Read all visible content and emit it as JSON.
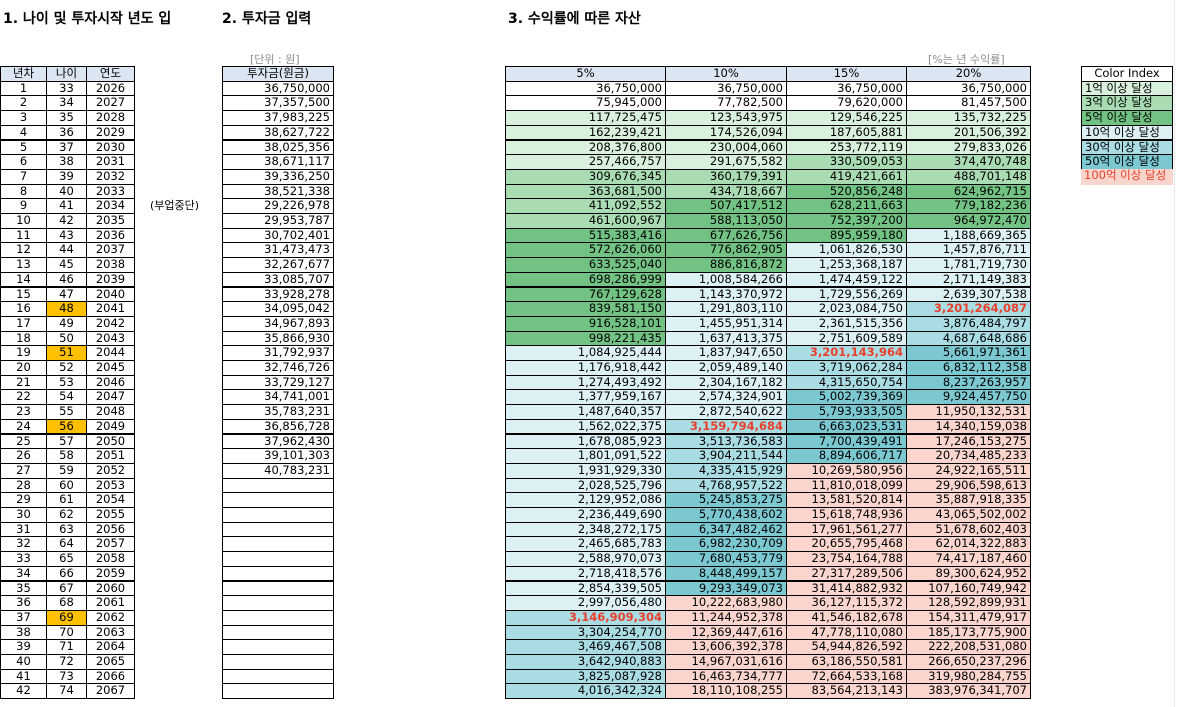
{
  "titles": {
    "left": "1. 나이 및 투자시작 년도 입",
    "middle": "2. 투자금 입력",
    "right": "3. 수익률에 따른 자산"
  },
  "age_table": {
    "headers": [
      "년차",
      "나이",
      "연도"
    ],
    "rows": [
      [
        1,
        33,
        2026
      ],
      [
        2,
        34,
        2027
      ],
      [
        3,
        35,
        2028
      ],
      [
        4,
        36,
        2029
      ],
      [
        5,
        37,
        2030
      ],
      [
        6,
        38,
        2031
      ],
      [
        7,
        39,
        2032
      ],
      [
        8,
        40,
        2033
      ],
      [
        9,
        41,
        2034
      ],
      [
        10,
        42,
        2035
      ],
      [
        11,
        43,
        2036
      ],
      [
        12,
        44,
        2037
      ],
      [
        13,
        45,
        2038
      ],
      [
        14,
        46,
        2039
      ],
      [
        15,
        47,
        2040
      ],
      [
        16,
        48,
        2041
      ],
      [
        17,
        49,
        2042
      ],
      [
        18,
        50,
        2043
      ],
      [
        19,
        51,
        2044
      ],
      [
        20,
        52,
        2045
      ],
      [
        21,
        53,
        2046
      ],
      [
        22,
        54,
        2047
      ],
      [
        23,
        55,
        2048
      ],
      [
        24,
        56,
        2049
      ],
      [
        25,
        57,
        2050
      ],
      [
        26,
        58,
        2051
      ],
      [
        27,
        59,
        2052
      ],
      [
        28,
        60,
        2053
      ],
      [
        29,
        61,
        2054
      ],
      [
        30,
        62,
        2055
      ],
      [
        31,
        63,
        2056
      ],
      [
        32,
        64,
        2057
      ],
      [
        33,
        65,
        2058
      ],
      [
        34,
        66,
        2059
      ],
      [
        35,
        67,
        2060
      ],
      [
        36,
        68,
        2061
      ],
      [
        37,
        69,
        2062
      ],
      [
        38,
        70,
        2063
      ],
      [
        39,
        71,
        2064
      ],
      [
        40,
        72,
        2065
      ],
      [
        41,
        73,
        2066
      ],
      [
        42,
        74,
        2067
      ]
    ]
  },
  "investment": {
    "unit": "[단위 : 원]",
    "header": "투자금(원금)",
    "note": "(부업중단)",
    "values": [
      "36,750,000",
      "37,357,500",
      "37,983,225",
      "38,627,722",
      "38,025,356",
      "38,671,117",
      "39,336,250",
      "38,521,338",
      "29,226,978",
      "29,953,787",
      "30,702,401",
      "31,473,473",
      "32,267,677",
      "33,085,707",
      "33,928,278",
      "34,095,042",
      "34,967,893",
      "35,866,930",
      "31,792,937",
      "32,746,726",
      "33,729,127",
      "34,741,001",
      "35,783,231",
      "36,856,728",
      "37,962,430",
      "39,101,303",
      "40,783,231"
    ]
  },
  "assets": {
    "unit": "[%는 년 수익률]",
    "headers": [
      "5%",
      "10%",
      "15%",
      "20%"
    ],
    "rows": [
      [
        "36,750,000",
        "36,750,000",
        "36,750,000",
        "36,750,000"
      ],
      [
        "75,945,000",
        "77,782,500",
        "79,620,000",
        "81,457,500"
      ],
      [
        "117,725,475",
        "123,543,975",
        "129,546,225",
        "135,732,225"
      ],
      [
        "162,239,421",
        "174,526,094",
        "187,605,881",
        "201,506,392"
      ],
      [
        "208,376,800",
        "230,004,060",
        "253,772,119",
        "279,833,026"
      ],
      [
        "257,466,757",
        "291,675,582",
        "330,509,053",
        "374,470,748"
      ],
      [
        "309,676,345",
        "360,179,391",
        "419,421,661",
        "488,701,148"
      ],
      [
        "363,681,500",
        "434,718,667",
        "520,856,248",
        "624,962,715"
      ],
      [
        "411,092,552",
        "507,417,512",
        "628,211,663",
        "779,182,236"
      ],
      [
        "461,600,967",
        "588,113,050",
        "752,397,200",
        "964,972,470"
      ],
      [
        "515,383,416",
        "677,626,756",
        "895,959,180",
        "1,188,669,365"
      ],
      [
        "572,626,060",
        "776,862,905",
        "1,061,826,530",
        "1,457,876,711"
      ],
      [
        "633,525,040",
        "886,816,872",
        "1,253,368,187",
        "1,781,719,730"
      ],
      [
        "698,286,999",
        "1,008,584,266",
        "1,474,459,122",
        "2,171,149,383"
      ],
      [
        "767,129,628",
        "1,143,370,972",
        "1,729,556,269",
        "2,639,307,538"
      ],
      [
        "839,581,150",
        "1,291,803,110",
        "2,023,084,750",
        "3,201,264,087"
      ],
      [
        "916,528,101",
        "1,455,951,314",
        "2,361,515,356",
        "3,876,484,797"
      ],
      [
        "998,221,435",
        "1,637,413,375",
        "2,751,609,589",
        "4,687,648,686"
      ],
      [
        "1,084,925,444",
        "1,837,947,650",
        "3,201,143,964",
        "5,661,971,361"
      ],
      [
        "1,176,918,442",
        "2,059,489,140",
        "3,719,062,284",
        "6,832,112,358"
      ],
      [
        "1,274,493,492",
        "2,304,167,182",
        "4,315,650,754",
        "8,237,263,957"
      ],
      [
        "1,377,959,167",
        "2,574,324,901",
        "5,002,739,369",
        "9,924,457,750"
      ],
      [
        "1,487,640,357",
        "2,872,540,622",
        "5,793,933,505",
        "11,950,132,531"
      ],
      [
        "1,562,022,375",
        "3,159,794,684",
        "6,663,023,531",
        "14,340,159,038"
      ],
      [
        "1,678,085,923",
        "3,513,736,583",
        "7,700,439,491",
        "17,246,153,275"
      ],
      [
        "1,801,091,522",
        "3,904,211,544",
        "8,894,606,717",
        "20,734,485,233"
      ],
      [
        "1,931,929,330",
        "4,335,415,929",
        "10,269,580,956",
        "24,922,165,511"
      ],
      [
        "2,028,525,796",
        "4,768,957,522",
        "11,810,018,099",
        "29,906,598,613"
      ],
      [
        "2,129,952,086",
        "5,245,853,275",
        "13,581,520,814",
        "35,887,918,335"
      ],
      [
        "2,236,449,690",
        "5,770,438,602",
        "15,618,748,936",
        "43,065,502,002"
      ],
      [
        "2,348,272,175",
        "6,347,482,462",
        "17,961,561,277",
        "51,678,602,403"
      ],
      [
        "2,465,685,783",
        "6,982,230,709",
        "20,655,795,468",
        "62,014,322,883"
      ],
      [
        "2,588,970,073",
        "7,680,453,779",
        "23,754,164,788",
        "74,417,187,460"
      ],
      [
        "2,718,418,576",
        "8,448,499,157",
        "27,317,289,506",
        "89,300,624,952"
      ],
      [
        "2,854,339,505",
        "9,293,349,073",
        "31,414,882,932",
        "107,160,749,942"
      ],
      [
        "2,997,056,480",
        "10,222,683,980",
        "36,127,115,372",
        "128,592,899,931"
      ],
      [
        "3,146,909,304",
        "11,244,952,378",
        "41,546,182,678",
        "154,311,479,917"
      ],
      [
        "3,304,254,770",
        "12,369,447,616",
        "47,778,110,080",
        "185,173,775,900"
      ],
      [
        "3,469,467,508",
        "13,606,392,378",
        "54,944,826,592",
        "222,208,531,080"
      ],
      [
        "3,642,940,883",
        "14,967,031,616",
        "63,186,550,581",
        "266,650,237,296"
      ],
      [
        "3,825,087,928",
        "16,463,734,777",
        "72,664,533,168",
        "319,980,284,755"
      ],
      [
        "4,016,342,324",
        "18,110,108,255",
        "83,564,213,143",
        "383,976,341,707"
      ]
    ]
  },
  "color_index": {
    "header": "Color Index",
    "items": [
      {
        "label": "1억 이상 달성",
        "min": 100000000,
        "color": "#d9f0dd"
      },
      {
        "label": "3억 이상 달성",
        "min": 300000000,
        "color": "#a9dcb2"
      },
      {
        "label": "5억 이상 달성",
        "min": 500000000,
        "color": "#72c383"
      },
      {
        "label": "10억 이상 달성",
        "min": 1000000000,
        "color": "#ddf1f4"
      },
      {
        "label": "30억 이상 달성",
        "min": 3000000000,
        "color": "#a9dce3",
        "milestone": true
      },
      {
        "label": "50억 이상 달성",
        "min": 5000000000,
        "color": "#7cc8d1"
      },
      {
        "label": "100억 이상 달성",
        "min": 10000000000,
        "color": "#fad5cd"
      }
    ],
    "milestone_color": "#e8402c",
    "age_highlight_color": "#ffc000"
  }
}
